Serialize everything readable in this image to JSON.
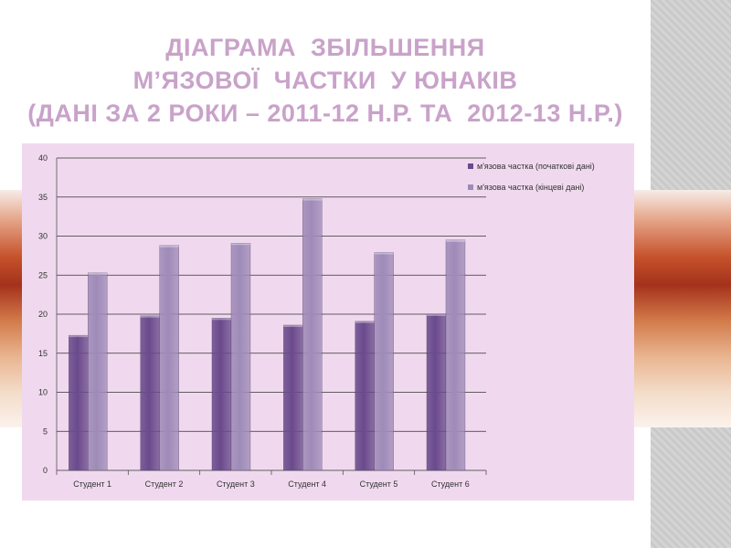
{
  "title": {
    "line1": "ДІАГРАМА  ЗБІЛЬШЕННЯ",
    "line2": "М’ЯЗОВОЇ  ЧАСТКИ  У ЮНАКІВ",
    "line3": "(ДАНІ ЗА 2 РОКИ – 2011-12 Н.Р. ТА  2012-13 Н.Р.)",
    "color": "#c9a2c9"
  },
  "chart_data": {
    "type": "bar",
    "title": "",
    "xlabel": "",
    "ylabel": "",
    "categories": [
      "Студент 1",
      "Студент 2",
      "Студент 3",
      "Студент 4",
      "Студент 5",
      "Студент 6"
    ],
    "series": [
      {
        "name": "м'язова частка (початкові дані)",
        "values": [
          17.3,
          19.8,
          19.5,
          18.6,
          19.1,
          20.0
        ],
        "color": "#6a4a8c"
      },
      {
        "name": "м'язова частка (кінцеві дані)",
        "values": [
          25.3,
          28.8,
          29.1,
          34.8,
          27.9,
          29.5
        ],
        "color": "#9f8bb8"
      }
    ],
    "ylim": [
      0,
      40
    ],
    "yticks": [
      "0",
      "5",
      "10",
      "15",
      "20",
      "25",
      "30",
      "35",
      "40"
    ],
    "grid": true,
    "legend_position": "top-right",
    "background": "#f0d9ee"
  }
}
